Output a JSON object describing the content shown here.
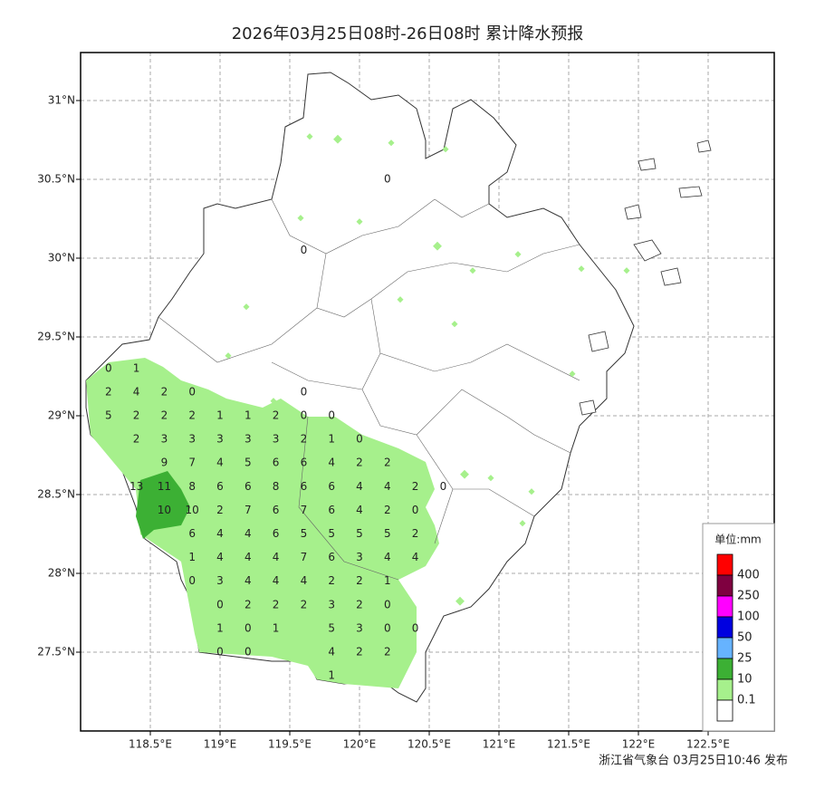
{
  "title": "2026年03月25日08时-26日08时 累计降水预报",
  "footer": "浙江省气象台 03月25日10:46 发布",
  "lon_ticks": [
    {
      "value": 118.5,
      "label": "118.5°E"
    },
    {
      "value": 119,
      "label": "119°E"
    },
    {
      "value": 119.5,
      "label": "119.5°E"
    },
    {
      "value": 120,
      "label": "120°E"
    },
    {
      "value": 120.5,
      "label": "120.5°E"
    },
    {
      "value": 121,
      "label": "121°E"
    },
    {
      "value": 121.5,
      "label": "121.5°E"
    },
    {
      "value": 122,
      "label": "122°E"
    },
    {
      "value": 122.5,
      "label": "122.5°E"
    }
  ],
  "lat_ticks": [
    {
      "value": 27.5,
      "label": "27.5°N"
    },
    {
      "value": 28,
      "label": "28°N"
    },
    {
      "value": 28.5,
      "label": "28.5°N"
    },
    {
      "value": 29,
      "label": "29°N"
    },
    {
      "value": 29.5,
      "label": "29.5°N"
    },
    {
      "value": 30,
      "label": "30°N"
    },
    {
      "value": 30.5,
      "label": "30.5°N"
    },
    {
      "value": 31,
      "label": "31°N"
    }
  ],
  "legend": {
    "unit": "单位:mm",
    "colors": [
      "#ff0000",
      "#7f0040",
      "#ff00ff",
      "#0000e0",
      "#66b3ff",
      "#3cb034",
      "#a6f08c",
      "#ffffff"
    ],
    "labels": [
      400,
      250,
      100,
      50,
      25,
      10,
      0.1
    ]
  },
  "points": [
    [
      118.2,
      29.3,
      0
    ],
    [
      118.4,
      29.3,
      1
    ],
    [
      118.2,
      29.15,
      2
    ],
    [
      118.4,
      29.15,
      4
    ],
    [
      118.6,
      29.15,
      2
    ],
    [
      118.8,
      29.15,
      0
    ],
    [
      119.6,
      29.15,
      0
    ],
    [
      118.2,
      29.0,
      5
    ],
    [
      118.4,
      29.0,
      2
    ],
    [
      118.6,
      29.0,
      2
    ],
    [
      118.8,
      29.0,
      2
    ],
    [
      119.0,
      29.0,
      1
    ],
    [
      119.2,
      29.0,
      1
    ],
    [
      119.4,
      29.0,
      2
    ],
    [
      119.6,
      29.0,
      0
    ],
    [
      119.8,
      29.0,
      0
    ],
    [
      118.4,
      28.85,
      2
    ],
    [
      118.6,
      28.85,
      3
    ],
    [
      118.8,
      28.85,
      3
    ],
    [
      119.0,
      28.85,
      3
    ],
    [
      119.2,
      28.85,
      3
    ],
    [
      119.4,
      28.85,
      3
    ],
    [
      119.6,
      28.85,
      2
    ],
    [
      119.8,
      28.85,
      1
    ],
    [
      120.0,
      28.85,
      0
    ],
    [
      118.6,
      28.7,
      9
    ],
    [
      118.8,
      28.7,
      7
    ],
    [
      119.0,
      28.7,
      4
    ],
    [
      119.2,
      28.7,
      5
    ],
    [
      119.4,
      28.7,
      6
    ],
    [
      119.6,
      28.7,
      6
    ],
    [
      119.8,
      28.7,
      4
    ],
    [
      120.0,
      28.7,
      2
    ],
    [
      120.2,
      28.7,
      2
    ],
    [
      118.4,
      28.55,
      13
    ],
    [
      118.6,
      28.55,
      11
    ],
    [
      118.8,
      28.55,
      8
    ],
    [
      119.0,
      28.55,
      6
    ],
    [
      119.2,
      28.55,
      6
    ],
    [
      119.4,
      28.55,
      8
    ],
    [
      119.6,
      28.55,
      6
    ],
    [
      119.8,
      28.55,
      6
    ],
    [
      120.0,
      28.55,
      4
    ],
    [
      120.2,
      28.55,
      4
    ],
    [
      120.4,
      28.55,
      2
    ],
    [
      120.6,
      28.55,
      0
    ],
    [
      118.6,
      28.4,
      10
    ],
    [
      118.8,
      28.4,
      10
    ],
    [
      119.0,
      28.4,
      2
    ],
    [
      119.2,
      28.4,
      7
    ],
    [
      119.4,
      28.4,
      6
    ],
    [
      119.6,
      28.4,
      7
    ],
    [
      119.8,
      28.4,
      6
    ],
    [
      120.0,
      28.4,
      4
    ],
    [
      120.2,
      28.4,
      2
    ],
    [
      120.4,
      28.4,
      0
    ],
    [
      118.8,
      28.25,
      6
    ],
    [
      119.0,
      28.25,
      4
    ],
    [
      119.2,
      28.25,
      4
    ],
    [
      119.4,
      28.25,
      6
    ],
    [
      119.6,
      28.25,
      5
    ],
    [
      119.8,
      28.25,
      5
    ],
    [
      120.0,
      28.25,
      5
    ],
    [
      120.2,
      28.25,
      5
    ],
    [
      120.4,
      28.25,
      2
    ],
    [
      118.8,
      28.1,
      1
    ],
    [
      119.0,
      28.1,
      4
    ],
    [
      119.2,
      28.1,
      4
    ],
    [
      119.4,
      28.1,
      4
    ],
    [
      119.6,
      28.1,
      7
    ],
    [
      119.8,
      28.1,
      6
    ],
    [
      120.0,
      28.1,
      3
    ],
    [
      120.2,
      28.1,
      4
    ],
    [
      120.4,
      28.1,
      4
    ],
    [
      118.8,
      27.95,
      0
    ],
    [
      119.0,
      27.95,
      3
    ],
    [
      119.2,
      27.95,
      4
    ],
    [
      119.4,
      27.95,
      4
    ],
    [
      119.6,
      27.95,
      4
    ],
    [
      119.8,
      27.95,
      2
    ],
    [
      120.0,
      27.95,
      2
    ],
    [
      120.2,
      27.95,
      1
    ],
    [
      119.0,
      27.8,
      0
    ],
    [
      119.2,
      27.8,
      2
    ],
    [
      119.4,
      27.8,
      2
    ],
    [
      119.6,
      27.8,
      2
    ],
    [
      119.8,
      27.8,
      3
    ],
    [
      120.0,
      27.8,
      2
    ],
    [
      120.2,
      27.8,
      0
    ],
    [
      119.0,
      27.65,
      1
    ],
    [
      119.2,
      27.65,
      0
    ],
    [
      119.4,
      27.65,
      1
    ],
    [
      119.8,
      27.65,
      5
    ],
    [
      120.0,
      27.65,
      3
    ],
    [
      120.2,
      27.65,
      0
    ],
    [
      120.4,
      27.65,
      0
    ],
    [
      119.0,
      27.5,
      0
    ],
    [
      119.2,
      27.5,
      0
    ],
    [
      119.8,
      27.5,
      4
    ],
    [
      120.0,
      27.5,
      2
    ],
    [
      120.2,
      27.5,
      2
    ],
    [
      119.8,
      27.35,
      1
    ],
    [
      120.2,
      30.5,
      0
    ],
    [
      119.6,
      30.05,
      0
    ]
  ]
}
